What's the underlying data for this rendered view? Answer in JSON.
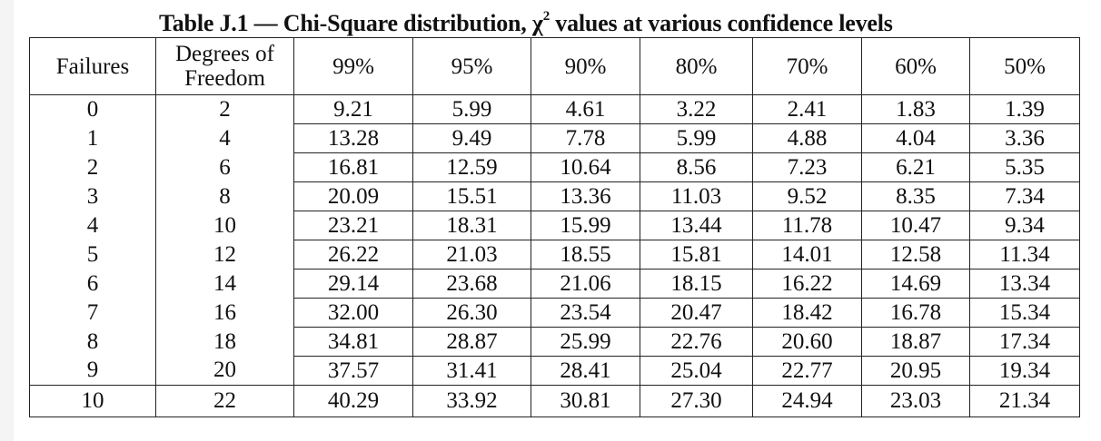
{
  "title": {
    "prefix": "Table J.1 — Chi-Square distribution, χ",
    "superscript": "2",
    "suffix": " values at various confidence levels"
  },
  "headers": {
    "failures": "Failures",
    "degrees_line1": "Degrees of",
    "degrees_line2": "Freedom",
    "levels": [
      "99%",
      "95%",
      "90%",
      "80%",
      "70%",
      "60%",
      "50%"
    ]
  },
  "rows": [
    {
      "failures": "0",
      "dof": "2",
      "values": [
        "9.21",
        "5.99",
        "4.61",
        "3.22",
        "2.41",
        "1.83",
        "1.39"
      ]
    },
    {
      "failures": "1",
      "dof": "4",
      "values": [
        "13.28",
        "9.49",
        "7.78",
        "5.99",
        "4.88",
        "4.04",
        "3.36"
      ]
    },
    {
      "failures": "2",
      "dof": "6",
      "values": [
        "16.81",
        "12.59",
        "10.64",
        "8.56",
        "7.23",
        "6.21",
        "5.35"
      ]
    },
    {
      "failures": "3",
      "dof": "8",
      "values": [
        "20.09",
        "15.51",
        "13.36",
        "11.03",
        "9.52",
        "8.35",
        "7.34"
      ]
    },
    {
      "failures": "4",
      "dof": "10",
      "values": [
        "23.21",
        "18.31",
        "15.99",
        "13.44",
        "11.78",
        "10.47",
        "9.34"
      ]
    },
    {
      "failures": "5",
      "dof": "12",
      "values": [
        "26.22",
        "21.03",
        "18.55",
        "15.81",
        "14.01",
        "12.58",
        "11.34"
      ]
    },
    {
      "failures": "6",
      "dof": "14",
      "values": [
        "29.14",
        "23.68",
        "21.06",
        "18.15",
        "16.22",
        "14.69",
        "13.34"
      ]
    },
    {
      "failures": "7",
      "dof": "16",
      "values": [
        "32.00",
        "26.30",
        "23.54",
        "20.47",
        "18.42",
        "16.78",
        "15.34"
      ]
    },
    {
      "failures": "8",
      "dof": "18",
      "values": [
        "34.81",
        "28.87",
        "25.99",
        "22.76",
        "20.60",
        "18.87",
        "17.34"
      ]
    },
    {
      "failures": "9",
      "dof": "20",
      "values": [
        "37.57",
        "31.41",
        "28.41",
        "25.04",
        "22.77",
        "20.95",
        "19.34"
      ]
    },
    {
      "failures": "10",
      "dof": "22",
      "values": [
        "40.29",
        "33.92",
        "30.81",
        "27.30",
        "24.94",
        "23.03",
        "21.34"
      ]
    }
  ]
}
